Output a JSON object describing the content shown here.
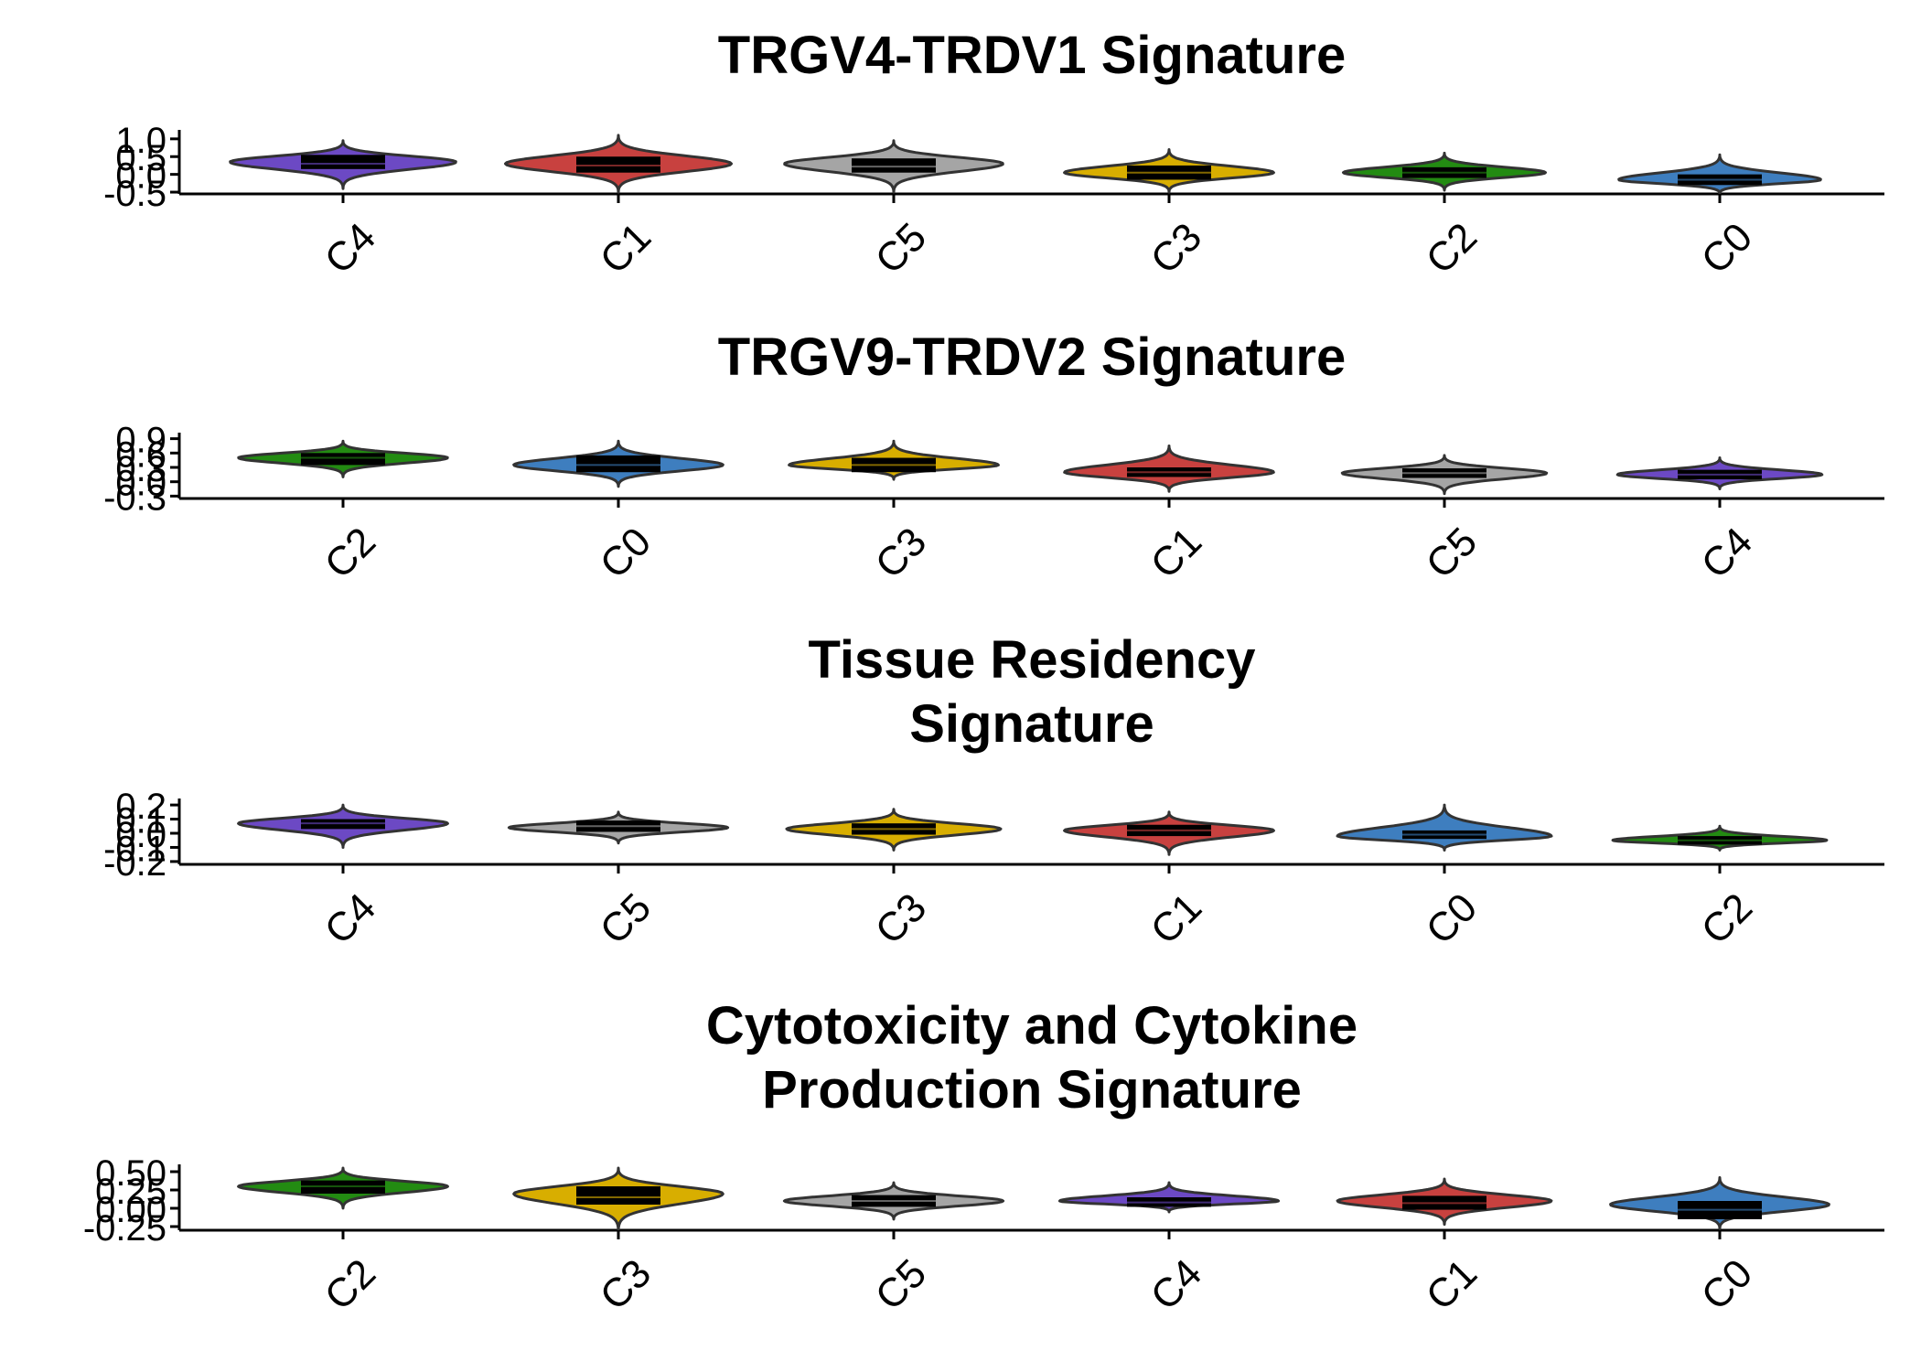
{
  "colors": {
    "C0": "#3E7EBF",
    "C1": "#C8413F",
    "C2": "#238B12",
    "C3": "#D8AE00",
    "C4": "#6C49C4",
    "C5": "#A5A5A5",
    "outline": "#333333",
    "box": "#000000"
  },
  "chart_data": [
    {
      "type": "violin",
      "title": "TRGV4-TRDV1 Signature",
      "xlabel": "",
      "ylabel": "",
      "ylim": [
        -0.55,
        1.15
      ],
      "yticks": [
        -0.5,
        0.0,
        0.5,
        1.0
      ],
      "ytick_labels": [
        "-0.5",
        "0.0",
        "0.5",
        "1.0"
      ],
      "grid": false,
      "categories": [
        "C4",
        "C1",
        "C5",
        "C3",
        "C2",
        "C0"
      ],
      "groups": [
        {
          "name": "C4",
          "min": -0.4,
          "q1": 0.15,
          "median": 0.3,
          "q3": 0.55,
          "max": 0.95,
          "peak": 0.35,
          "width": 0.95
        },
        {
          "name": "C1",
          "min": -0.5,
          "q1": 0.05,
          "median": 0.25,
          "q3": 0.5,
          "max": 1.1,
          "peak": 0.3,
          "width": 0.95
        },
        {
          "name": "C5",
          "min": -0.5,
          "q1": 0.05,
          "median": 0.22,
          "q3": 0.45,
          "max": 0.95,
          "peak": 0.3,
          "width": 0.92
        },
        {
          "name": "C3",
          "min": -0.5,
          "q1": -0.15,
          "median": 0.05,
          "q3": 0.25,
          "max": 0.7,
          "peak": 0.05,
          "width": 0.88
        },
        {
          "name": "C2",
          "min": -0.45,
          "q1": -0.1,
          "median": 0.05,
          "q3": 0.2,
          "max": 0.6,
          "peak": 0.05,
          "width": 0.85
        },
        {
          "name": "C0",
          "min": -0.55,
          "q1": -0.3,
          "median": -0.15,
          "q3": 0.0,
          "max": 0.55,
          "peak": -0.15,
          "width": 0.85
        }
      ]
    },
    {
      "type": "violin",
      "title": "TRGV9-TRDV2 Signature",
      "xlabel": "",
      "ylabel": "",
      "ylim": [
        -0.35,
        0.95
      ],
      "yticks": [
        -0.3,
        0.0,
        0.3,
        0.6,
        0.9
      ],
      "ytick_labels": [
        "-0.3",
        "0.0",
        "0.3",
        "0.6",
        "0.9"
      ],
      "grid": false,
      "categories": [
        "C2",
        "C0",
        "C3",
        "C1",
        "C5",
        "C4"
      ],
      "groups": [
        {
          "name": "C2",
          "min": 0.1,
          "q1": 0.35,
          "median": 0.5,
          "q3": 0.6,
          "max": 0.85,
          "peak": 0.5,
          "width": 0.88
        },
        {
          "name": "C0",
          "min": -0.1,
          "q1": 0.2,
          "median": 0.35,
          "q3": 0.55,
          "max": 0.85,
          "peak": 0.35,
          "width": 0.88
        },
        {
          "name": "C3",
          "min": 0.05,
          "q1": 0.2,
          "median": 0.35,
          "q3": 0.5,
          "max": 0.85,
          "peak": 0.35,
          "width": 0.88
        },
        {
          "name": "C1",
          "min": -0.2,
          "q1": 0.1,
          "median": 0.2,
          "q3": 0.3,
          "max": 0.75,
          "peak": 0.2,
          "width": 0.88
        },
        {
          "name": "C5",
          "min": -0.25,
          "q1": 0.08,
          "median": 0.18,
          "q3": 0.28,
          "max": 0.55,
          "peak": 0.18,
          "width": 0.86
        },
        {
          "name": "C4",
          "min": -0.15,
          "q1": 0.05,
          "median": 0.15,
          "q3": 0.25,
          "max": 0.5,
          "peak": 0.15,
          "width": 0.86
        }
      ]
    },
    {
      "type": "violin",
      "title": "Tissue Residency Signature",
      "title_lines": [
        "Tissue Residency",
        "Signature"
      ],
      "xlabel": "",
      "ylabel": "",
      "ylim": [
        -0.22,
        0.22
      ],
      "yticks": [
        -0.2,
        -0.1,
        0.0,
        0.1,
        0.2
      ],
      "ytick_labels": [
        "-0.2",
        "-0.1",
        "0.0",
        "0.1",
        "0.2"
      ],
      "grid": false,
      "categories": [
        "C4",
        "C5",
        "C3",
        "C1",
        "C0",
        "C2"
      ],
      "groups": [
        {
          "name": "C4",
          "min": -0.1,
          "q1": 0.03,
          "median": 0.07,
          "q3": 0.1,
          "max": 0.2,
          "peak": 0.07,
          "width": 0.88
        },
        {
          "name": "C5",
          "min": -0.07,
          "q1": 0.01,
          "median": 0.05,
          "q3": 0.09,
          "max": 0.15,
          "peak": 0.04,
          "width": 0.92
        },
        {
          "name": "C3",
          "min": -0.12,
          "q1": -0.01,
          "median": 0.03,
          "q3": 0.07,
          "max": 0.17,
          "peak": 0.03,
          "width": 0.9
        },
        {
          "name": "C1",
          "min": -0.15,
          "q1": -0.02,
          "median": 0.02,
          "q3": 0.06,
          "max": 0.15,
          "peak": 0.02,
          "width": 0.88
        },
        {
          "name": "C0",
          "min": -0.12,
          "q1": -0.04,
          "median": -0.01,
          "q3": 0.02,
          "max": 0.2,
          "peak": -0.02,
          "width": 0.9
        },
        {
          "name": "C2",
          "min": -0.12,
          "q1": -0.08,
          "median": -0.05,
          "q3": -0.02,
          "max": 0.05,
          "peak": -0.05,
          "width": 0.9
        }
      ]
    },
    {
      "type": "violin",
      "title": "Cytotoxicity and Cytokine Production Signature",
      "title_lines": [
        "Cytotoxicity and Cytokine",
        "Production Signature"
      ],
      "xlabel": "",
      "ylabel": "",
      "ylim": [
        -0.3,
        0.55
      ],
      "yticks": [
        -0.25,
        0.0,
        0.25,
        0.5
      ],
      "ytick_labels": [
        "-0.25",
        "0.00",
        "0.25",
        "0.50"
      ],
      "grid": false,
      "categories": [
        "C2",
        "C3",
        "C5",
        "C4",
        "C1",
        "C0"
      ],
      "groups": [
        {
          "name": "C2",
          "min": 0.0,
          "q1": 0.2,
          "median": 0.3,
          "q3": 0.38,
          "max": 0.55,
          "peak": 0.3,
          "width": 0.88
        },
        {
          "name": "C3",
          "min": -0.3,
          "q1": 0.05,
          "median": 0.15,
          "q3": 0.3,
          "max": 0.55,
          "peak": 0.2,
          "width": 0.88
        },
        {
          "name": "C5",
          "min": -0.15,
          "q1": 0.02,
          "median": 0.1,
          "q3": 0.18,
          "max": 0.35,
          "peak": 0.1,
          "width": 0.92
        },
        {
          "name": "C4",
          "min": -0.05,
          "q1": 0.02,
          "median": 0.08,
          "q3": 0.15,
          "max": 0.35,
          "peak": 0.1,
          "width": 0.92
        },
        {
          "name": "C1",
          "min": -0.22,
          "q1": -0.02,
          "median": 0.07,
          "q3": 0.17,
          "max": 0.4,
          "peak": 0.1,
          "width": 0.9
        },
        {
          "name": "C0",
          "min": -0.28,
          "q1": -0.15,
          "median": -0.02,
          "q3": 0.1,
          "max": 0.42,
          "peak": 0.05,
          "width": 0.92
        }
      ]
    }
  ]
}
